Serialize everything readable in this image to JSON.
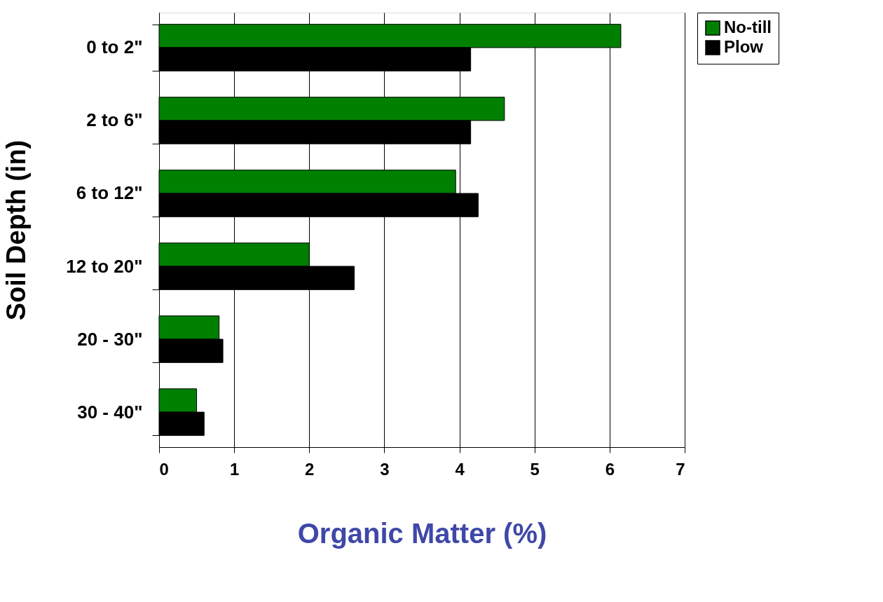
{
  "chart_data": {
    "type": "bar",
    "orientation": "horizontal",
    "xlabel": "Organic Matter (%)",
    "ylabel": "Soil Depth (in)",
    "categories": [
      "0 to 2\"",
      "2 to 6\"",
      "6 to 12\"",
      "12 to 20\"",
      "20 - 30\"",
      "30 - 40\""
    ],
    "series": [
      {
        "name": "No-till",
        "color": "#008000",
        "values": [
          6.15,
          4.6,
          3.95,
          2.0,
          0.8,
          0.5
        ]
      },
      {
        "name": "Plow",
        "color": "#000000",
        "values": [
          4.15,
          4.15,
          4.25,
          2.6,
          0.85,
          0.6
        ]
      }
    ],
    "xlim": [
      0,
      7
    ],
    "xticks": [
      0,
      1,
      2,
      3,
      4,
      5,
      6,
      7
    ],
    "grid": "x",
    "legend": "right"
  }
}
